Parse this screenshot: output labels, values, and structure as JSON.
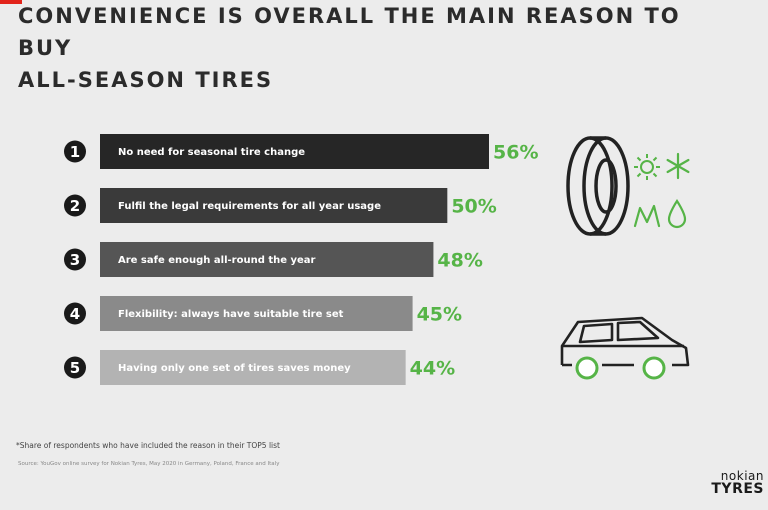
{
  "title": {
    "line1": "CONVENIENCE IS OVERALL THE MAIN REASON TO BUY",
    "line2": "ALL-SEASON TIRES"
  },
  "chart_data": {
    "type": "bar",
    "orientation": "horizontal",
    "categories": [
      "No need for seasonal tire change",
      "Fulfil the legal requirements for all year usage",
      "Are safe enough all-round the year",
      "Flexibility: always have suitable tire set",
      "Having only one set of tires saves money"
    ],
    "ranks": [
      "1",
      "2",
      "3",
      "4",
      "5"
    ],
    "values": [
      56,
      50,
      48,
      45,
      44
    ],
    "value_labels": [
      "56%",
      "50%",
      "48%",
      "45%",
      "44%"
    ],
    "bar_colors": [
      "#262626",
      "#3a3a3a",
      "#555555",
      "#8a8a8a",
      "#b3b3b3"
    ],
    "value_color": "#56b447",
    "xlim": [
      0,
      56
    ]
  },
  "footnote": "*Share of respondents who have included the reason in their TOP5 list",
  "source": "Source: YouGov online survey for Nokian Tyres, May 2020 in Germany, Poland, France and Italy",
  "logo": {
    "line1": "nokian",
    "line2": "TYRES"
  },
  "colors": {
    "accent_green": "#56b447",
    "background": "#ececec",
    "brand_red": "#e2231a"
  },
  "icons": [
    "tire-icon",
    "sun-icon",
    "snowflake-icon",
    "leaf-icon",
    "raindrop-icon",
    "car-icon"
  ]
}
